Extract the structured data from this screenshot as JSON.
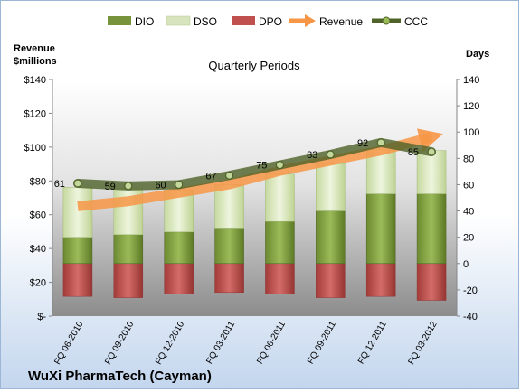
{
  "chart_data": {
    "type": "bar",
    "title": "Quarterly Periods",
    "company": "WuXi PharmaTech (Cayman)",
    "left_axis": {
      "label_line1": "Revenue",
      "label_line2": "$millions",
      "ylim": [
        0,
        140
      ],
      "ticks": [
        0,
        20,
        40,
        60,
        80,
        100,
        120,
        140
      ],
      "tick_labels": [
        "$-",
        "$20",
        "$40",
        "$60",
        "$80",
        "$100",
        "$120",
        "$140"
      ]
    },
    "right_axis": {
      "label": "Days",
      "ylim": [
        -40,
        140
      ],
      "ticks": [
        -40,
        -20,
        0,
        20,
        40,
        60,
        80,
        100,
        120,
        140
      ],
      "tick_labels": [
        "-40",
        "-20",
        "0",
        "20",
        "40",
        "60",
        "80",
        "100",
        "120",
        "140"
      ]
    },
    "categories": [
      "FQ 06-2010",
      "FQ 09-2010",
      "FQ 12-2010",
      "FQ 03-2011",
      "FQ 06-2011",
      "FQ 09-2011",
      "FQ 12-2011",
      "FQ 03-2012"
    ],
    "series": [
      {
        "name": "DIO",
        "color": "#77933c",
        "values": [
          20,
          22,
          24,
          27,
          32,
          40,
          53,
          53
        ]
      },
      {
        "name": "DSO",
        "color": "#d7e4bd",
        "values": [
          38,
          35,
          32,
          33,
          36,
          36,
          34,
          33
        ]
      },
      {
        "name": "DPO",
        "color": "#c0504d",
        "values": [
          -25,
          -26,
          -23,
          -22,
          -23,
          -26,
          -25,
          -28
        ]
      },
      {
        "name": "Revenue",
        "color": "#f79646",
        "values": [
          65,
          68,
          73,
          78,
          86,
          92,
          98,
          106
        ]
      },
      {
        "name": "CCC",
        "color": "#4f6228",
        "values": [
          61,
          59,
          60,
          67,
          75,
          83,
          92,
          85
        ]
      }
    ],
    "ccc_labels": [
      "61",
      "59",
      "60",
      "67",
      "75",
      "83",
      "92",
      "85"
    ],
    "legend": [
      "DIO",
      "DSO",
      "DPO",
      "Revenue",
      "CCC"
    ],
    "legend_position": "top",
    "grid": false
  }
}
